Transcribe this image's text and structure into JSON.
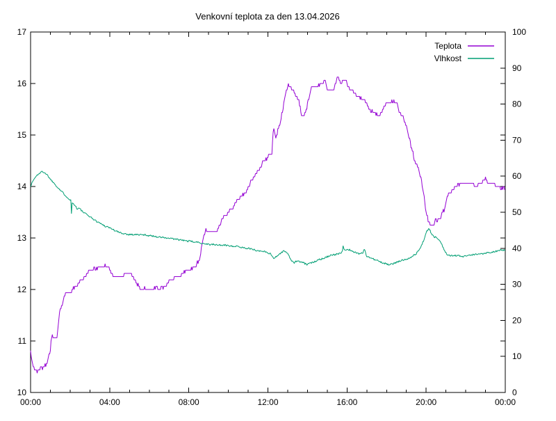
{
  "title": "Venkovní teplota za den 13.04.2026",
  "legend": [
    {
      "label": "Teplota",
      "color": "#9400d3"
    },
    {
      "label": "Vlhkost",
      "color": "#009e73"
    }
  ],
  "chart_data": {
    "type": "line",
    "title": "Venkovní teplota za den 13.04.2026",
    "grid": false,
    "legend_position": "top-right-inside",
    "background": "#ffffff",
    "border_color": "#000000",
    "x_axis": {
      "range_hours": [
        0,
        24
      ],
      "major_tick_hours": [
        0,
        4,
        8,
        12,
        16,
        20,
        24
      ],
      "major_tick_labels": [
        "00:00",
        "04:00",
        "08:00",
        "12:00",
        "16:00",
        "20:00",
        "00:00"
      ],
      "minor_step_hours": 1
    },
    "y_axis_left": {
      "range": [
        10,
        17
      ],
      "ticks": [
        10,
        11,
        12,
        13,
        14,
        15,
        16,
        17
      ],
      "tick_labels": [
        "10",
        "11",
        "12",
        "13",
        "14",
        "15",
        "16",
        "17"
      ],
      "series": "Teplota"
    },
    "y_axis_right": {
      "range": [
        0,
        100
      ],
      "ticks": [
        0,
        10,
        20,
        30,
        40,
        50,
        60,
        70,
        80,
        90,
        100
      ],
      "tick_labels": [
        "0",
        "10",
        "20",
        "30",
        "40",
        "50",
        "60",
        "70",
        "80",
        "90",
        "100"
      ],
      "series": "Vlhkost"
    },
    "series": [
      {
        "name": "Teplota",
        "axis": "left",
        "unit": "°C",
        "color": "#9400d3",
        "points": [
          [
            0.0,
            10.78
          ],
          [
            0.05,
            10.62
          ],
          [
            0.15,
            10.5
          ],
          [
            0.22,
            10.4
          ],
          [
            0.3,
            10.45
          ],
          [
            0.35,
            10.38
          ],
          [
            0.45,
            10.47
          ],
          [
            0.6,
            10.47
          ],
          [
            0.7,
            10.52
          ],
          [
            0.8,
            10.57
          ],
          [
            0.92,
            10.7
          ],
          [
            1.0,
            10.85
          ],
          [
            1.05,
            11.05
          ],
          [
            1.1,
            11.08
          ],
          [
            1.35,
            11.08
          ],
          [
            1.45,
            11.55
          ],
          [
            1.55,
            11.65
          ],
          [
            1.65,
            11.78
          ],
          [
            1.75,
            11.92
          ],
          [
            2.05,
            11.95
          ],
          [
            2.2,
            12.04
          ],
          [
            2.4,
            12.1
          ],
          [
            2.6,
            12.19
          ],
          [
            2.8,
            12.28
          ],
          [
            3.0,
            12.38
          ],
          [
            3.3,
            12.4
          ],
          [
            3.45,
            12.45
          ],
          [
            3.95,
            12.45
          ],
          [
            4.05,
            12.33
          ],
          [
            4.2,
            12.25
          ],
          [
            4.65,
            12.25
          ],
          [
            4.75,
            12.3
          ],
          [
            5.1,
            12.3
          ],
          [
            5.25,
            12.2
          ],
          [
            5.4,
            12.1
          ],
          [
            5.55,
            12.03
          ],
          [
            6.0,
            12.0
          ],
          [
            6.3,
            12.02
          ],
          [
            6.7,
            12.02
          ],
          [
            6.9,
            12.1
          ],
          [
            7.2,
            12.22
          ],
          [
            7.5,
            12.25
          ],
          [
            7.8,
            12.35
          ],
          [
            8.1,
            12.4
          ],
          [
            8.35,
            12.45
          ],
          [
            8.55,
            12.6
          ],
          [
            8.7,
            12.95
          ],
          [
            8.85,
            13.14
          ],
          [
            9.4,
            13.13
          ],
          [
            9.55,
            13.25
          ],
          [
            9.75,
            13.4
          ],
          [
            9.95,
            13.47
          ],
          [
            10.1,
            13.55
          ],
          [
            10.2,
            13.55
          ],
          [
            10.35,
            13.68
          ],
          [
            10.55,
            13.78
          ],
          [
            10.75,
            13.84
          ],
          [
            10.95,
            13.93
          ],
          [
            11.2,
            14.13
          ],
          [
            11.5,
            14.3
          ],
          [
            11.8,
            14.5
          ],
          [
            12.05,
            14.58
          ],
          [
            12.2,
            14.65
          ],
          [
            12.28,
            15.15
          ],
          [
            12.4,
            14.96
          ],
          [
            12.6,
            15.23
          ],
          [
            12.8,
            15.6
          ],
          [
            12.95,
            15.9
          ],
          [
            13.05,
            15.97
          ],
          [
            13.25,
            15.9
          ],
          [
            13.4,
            15.76
          ],
          [
            13.55,
            15.71
          ],
          [
            13.7,
            15.4
          ],
          [
            13.85,
            15.37
          ],
          [
            14.0,
            15.6
          ],
          [
            14.2,
            15.93
          ],
          [
            14.55,
            15.95
          ],
          [
            14.75,
            16.0
          ],
          [
            14.9,
            16.05
          ],
          [
            15.0,
            15.88
          ],
          [
            15.3,
            15.86
          ],
          [
            15.45,
            16.05
          ],
          [
            15.55,
            16.15
          ],
          [
            15.68,
            15.97
          ],
          [
            15.85,
            16.1
          ],
          [
            15.95,
            16.05
          ],
          [
            16.1,
            15.9
          ],
          [
            16.3,
            15.86
          ],
          [
            16.5,
            15.76
          ],
          [
            16.7,
            15.73
          ],
          [
            16.9,
            15.66
          ],
          [
            17.1,
            15.5
          ],
          [
            17.3,
            15.45
          ],
          [
            17.45,
            15.4
          ],
          [
            17.6,
            15.37
          ],
          [
            17.8,
            15.5
          ],
          [
            18.0,
            15.63
          ],
          [
            18.5,
            15.65
          ],
          [
            18.65,
            15.45
          ],
          [
            18.85,
            15.35
          ],
          [
            19.0,
            15.15
          ],
          [
            19.2,
            14.85
          ],
          [
            19.4,
            14.55
          ],
          [
            19.6,
            14.35
          ],
          [
            19.8,
            14.05
          ],
          [
            20.0,
            13.5
          ],
          [
            20.15,
            13.28
          ],
          [
            20.3,
            13.2
          ],
          [
            20.45,
            13.33
          ],
          [
            20.6,
            13.33
          ],
          [
            20.8,
            13.45
          ],
          [
            20.95,
            13.6
          ],
          [
            21.1,
            13.85
          ],
          [
            21.3,
            13.93
          ],
          [
            21.5,
            14.0
          ],
          [
            21.9,
            14.07
          ],
          [
            22.35,
            14.07
          ],
          [
            22.5,
            14.0
          ],
          [
            22.7,
            14.07
          ],
          [
            22.95,
            14.08
          ],
          [
            23.0,
            14.18
          ],
          [
            23.1,
            14.07
          ],
          [
            23.4,
            14.07
          ],
          [
            23.55,
            14.0
          ],
          [
            23.75,
            13.97
          ],
          [
            24.0,
            13.97
          ]
        ]
      },
      {
        "name": "Vlhkost",
        "axis": "right",
        "unit": "%",
        "color": "#009e73",
        "points": [
          [
            0.0,
            57.3
          ],
          [
            0.15,
            59.0
          ],
          [
            0.33,
            60.3
          ],
          [
            0.55,
            61.2
          ],
          [
            0.68,
            61.2
          ],
          [
            0.85,
            60.3
          ],
          [
            1.03,
            59.0
          ],
          [
            1.2,
            58.0
          ],
          [
            1.4,
            56.7
          ],
          [
            1.6,
            55.6
          ],
          [
            1.9,
            53.9
          ],
          [
            2.05,
            53.3
          ],
          [
            2.07,
            48.8
          ],
          [
            2.1,
            52.6
          ],
          [
            2.25,
            52.0
          ],
          [
            2.35,
            50.8
          ],
          [
            2.45,
            51.2
          ],
          [
            2.6,
            50.3
          ],
          [
            2.8,
            49.5
          ],
          [
            3.0,
            48.8
          ],
          [
            3.25,
            47.8
          ],
          [
            3.5,
            47.0
          ],
          [
            3.75,
            46.2
          ],
          [
            4.0,
            45.7
          ],
          [
            4.3,
            44.8
          ],
          [
            4.6,
            44.2
          ],
          [
            4.9,
            43.9
          ],
          [
            5.3,
            43.8
          ],
          [
            5.8,
            43.7
          ],
          [
            6.3,
            43.3
          ],
          [
            6.8,
            42.9
          ],
          [
            7.2,
            42.6
          ],
          [
            7.7,
            42.2
          ],
          [
            8.1,
            41.9
          ],
          [
            8.5,
            41.6
          ],
          [
            9.0,
            41.1
          ],
          [
            9.5,
            40.9
          ],
          [
            10.0,
            40.8
          ],
          [
            10.5,
            40.4
          ],
          [
            11.0,
            40.0
          ],
          [
            11.5,
            39.3
          ],
          [
            11.9,
            39.1
          ],
          [
            12.15,
            38.3
          ],
          [
            12.3,
            37.3
          ],
          [
            12.5,
            38.0
          ],
          [
            12.7,
            38.9
          ],
          [
            12.85,
            39.3
          ],
          [
            13.0,
            38.5
          ],
          [
            13.15,
            37.0
          ],
          [
            13.3,
            35.9
          ],
          [
            13.45,
            36.5
          ],
          [
            13.6,
            36.3
          ],
          [
            13.75,
            36.0
          ],
          [
            14.0,
            35.5
          ],
          [
            14.3,
            36.2
          ],
          [
            14.55,
            36.9
          ],
          [
            14.8,
            37.2
          ],
          [
            15.05,
            37.8
          ],
          [
            15.3,
            38.1
          ],
          [
            15.55,
            38.5
          ],
          [
            15.75,
            39.0
          ],
          [
            15.8,
            40.5
          ],
          [
            15.9,
            39.3
          ],
          [
            16.0,
            39.5
          ],
          [
            16.15,
            39.6
          ],
          [
            16.35,
            39.0
          ],
          [
            16.6,
            38.5
          ],
          [
            16.8,
            38.8
          ],
          [
            16.88,
            39.6
          ],
          [
            17.0,
            37.8
          ],
          [
            17.2,
            37.3
          ],
          [
            17.45,
            36.7
          ],
          [
            17.7,
            36.2
          ],
          [
            17.9,
            35.8
          ],
          [
            18.15,
            35.4
          ],
          [
            18.35,
            35.8
          ],
          [
            18.55,
            36.2
          ],
          [
            18.85,
            36.8
          ],
          [
            19.1,
            37.2
          ],
          [
            19.3,
            37.8
          ],
          [
            19.5,
            38.5
          ],
          [
            19.7,
            40.0
          ],
          [
            19.9,
            42.6
          ],
          [
            20.05,
            44.9
          ],
          [
            20.15,
            45.5
          ],
          [
            20.3,
            43.7
          ],
          [
            20.4,
            43.0
          ],
          [
            20.5,
            43.3
          ],
          [
            20.65,
            42.4
          ],
          [
            20.78,
            41.3
          ],
          [
            20.9,
            39.6
          ],
          [
            21.05,
            38.4
          ],
          [
            21.3,
            37.9
          ],
          [
            21.6,
            38.0
          ],
          [
            21.8,
            37.6
          ],
          [
            22.1,
            37.9
          ],
          [
            22.4,
            38.2
          ],
          [
            22.7,
            38.4
          ],
          [
            23.0,
            38.7
          ],
          [
            23.3,
            38.9
          ],
          [
            23.6,
            39.3
          ],
          [
            23.85,
            39.6
          ],
          [
            24.0,
            39.4
          ]
        ]
      }
    ]
  }
}
